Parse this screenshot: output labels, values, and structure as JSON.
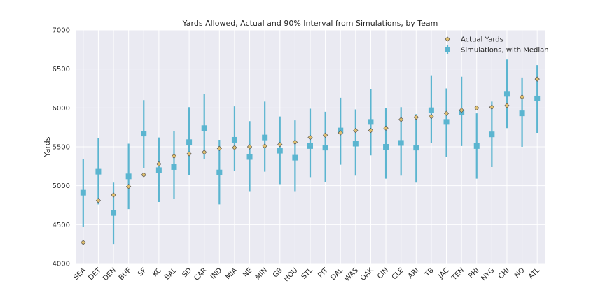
{
  "chart_data": {
    "type": "scatter",
    "title": "Yards Allowed, Actual and 90% Interval from Simulations, by Team",
    "xlabel": "",
    "ylabel": "Yards",
    "ylim": [
      4000,
      7000
    ],
    "yticks": [
      4000,
      4500,
      5000,
      5500,
      6000,
      6500,
      7000
    ],
    "grid": true,
    "legend_position": "top-right",
    "colors": {
      "background": "#eaeaf2",
      "grid": "#ffffff",
      "actual": "#e0c070",
      "actual_edge": "#4a4a4a",
      "sim": "#5bb5d0"
    },
    "categories": [
      "SEA",
      "DET",
      "DEN",
      "BUF",
      "SF",
      "KC",
      "BAL",
      "SD",
      "CAR",
      "IND",
      "MIA",
      "NE",
      "MIN",
      "GB",
      "HOU",
      "STL",
      "PIT",
      "DAL",
      "WAS",
      "OAK",
      "CIN",
      "CLE",
      "ARI",
      "TB",
      "JAC",
      "TEN",
      "PHI",
      "NYG",
      "CHI",
      "NO",
      "ATL"
    ],
    "series": [
      {
        "name": "Actual Yards",
        "marker": "diamond",
        "values": [
          4270,
          4810,
          4880,
          4990,
          5140,
          5280,
          5380,
          5410,
          5430,
          5480,
          5490,
          5500,
          5510,
          5530,
          5560,
          5620,
          5650,
          5680,
          5710,
          5710,
          5740,
          5850,
          5880,
          5890,
          5930,
          5970,
          6000,
          6010,
          6030,
          6140,
          6370
        ]
      },
      {
        "name": "Simulations, with Median",
        "marker": "square",
        "median": [
          4910,
          5180,
          4650,
          5120,
          5670,
          5200,
          5240,
          5560,
          5740,
          5170,
          5590,
          5370,
          5620,
          5450,
          5360,
          5510,
          5490,
          5710,
          5540,
          5820,
          5500,
          5550,
          5490,
          5970,
          5820,
          5940,
          5510,
          5660,
          6180,
          5930,
          6120
        ],
        "low": [
          4470,
          4760,
          4250,
          4700,
          5230,
          4790,
          4830,
          5140,
          5340,
          4760,
          5190,
          4930,
          5180,
          5020,
          4930,
          5110,
          5050,
          5270,
          5130,
          5390,
          5090,
          5130,
          5040,
          5550,
          5370,
          5510,
          5090,
          5240,
          5740,
          5500,
          5680
        ],
        "high": [
          5340,
          5610,
          5040,
          5540,
          6100,
          5620,
          5700,
          6010,
          6180,
          5590,
          6020,
          5830,
          6080,
          5890,
          5840,
          5990,
          5950,
          6130,
          5980,
          6240,
          6000,
          6010,
          5920,
          6410,
          6250,
          6400,
          5930,
          6080,
          6620,
          6390,
          6550
        ]
      }
    ]
  }
}
